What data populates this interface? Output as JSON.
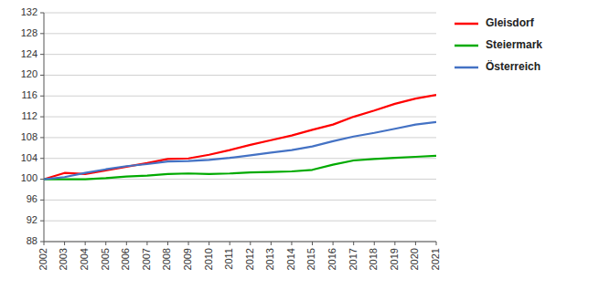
{
  "chart_data": {
    "type": "line",
    "x": [
      2002,
      2003,
      2004,
      2005,
      2006,
      2007,
      2008,
      2009,
      2010,
      2011,
      2012,
      2013,
      2014,
      2015,
      2016,
      2017,
      2018,
      2019,
      2020,
      2021
    ],
    "series": [
      {
        "name": "Gleisdorf",
        "color": "#ff0000",
        "values": [
          100.0,
          101.2,
          101.0,
          101.7,
          102.4,
          103.1,
          103.9,
          104.0,
          104.7,
          105.6,
          106.6,
          107.5,
          108.4,
          109.5,
          110.5,
          112.0,
          113.2,
          114.5,
          115.5,
          116.2
        ]
      },
      {
        "name": "Steiermark",
        "color": "#00aa00",
        "values": [
          100.0,
          100.0,
          100.0,
          100.2,
          100.5,
          100.7,
          101.0,
          101.1,
          101.0,
          101.1,
          101.3,
          101.4,
          101.5,
          101.8,
          102.8,
          103.6,
          103.9,
          104.1,
          104.3,
          104.5
        ]
      },
      {
        "name": "Österreich",
        "color": "#4472c4",
        "values": [
          100.0,
          100.4,
          101.2,
          101.9,
          102.5,
          102.9,
          103.4,
          103.5,
          103.7,
          104.1,
          104.6,
          105.1,
          105.6,
          106.3,
          107.3,
          108.2,
          108.9,
          109.7,
          110.5,
          111.0
        ]
      }
    ],
    "xlim": [
      2002,
      2021
    ],
    "xticks": [
      2002,
      2003,
      2004,
      2005,
      2006,
      2007,
      2008,
      2009,
      2010,
      2011,
      2012,
      2013,
      2014,
      2015,
      2016,
      2017,
      2018,
      2019,
      2020,
      2021
    ],
    "ylim": [
      88,
      132
    ],
    "yticks": [
      88,
      92,
      96,
      100,
      104,
      108,
      112,
      116,
      120,
      124,
      128,
      132
    ],
    "grid": true,
    "legend": "right"
  }
}
